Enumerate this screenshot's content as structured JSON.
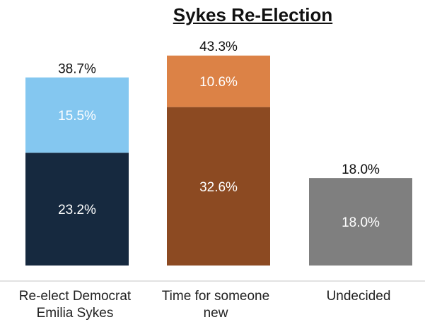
{
  "chart_data": {
    "type": "bar",
    "title": "Sykes Re-Election",
    "categories": [
      {
        "line1": "Re-elect Democrat",
        "line2": "Emilia Sykes"
      },
      {
        "line1": "Time for someone",
        "line2": "new"
      },
      {
        "line1": "Undecided",
        "line2": ""
      }
    ],
    "stacks": [
      {
        "total": 38.7,
        "total_label": "38.7%",
        "segments": [
          {
            "value": 23.2,
            "label": "23.2%",
            "color": "#16293f"
          },
          {
            "value": 15.5,
            "label": "15.5%",
            "color": "#84c7f0"
          }
        ]
      },
      {
        "total": 43.3,
        "total_label": "43.3%",
        "segments": [
          {
            "value": 32.6,
            "label": "32.6%",
            "color": "#8c4a22"
          },
          {
            "value": 10.6,
            "label": "10.6%",
            "color": "#dc8246"
          }
        ]
      },
      {
        "total": 18.0,
        "total_label": "18.0%",
        "segments": [
          {
            "value": 18.0,
            "label": "18.0%",
            "color": "#7f7f7f"
          }
        ]
      }
    ],
    "ylim": [
      0,
      43.3
    ],
    "grid": false,
    "legend": "none"
  }
}
